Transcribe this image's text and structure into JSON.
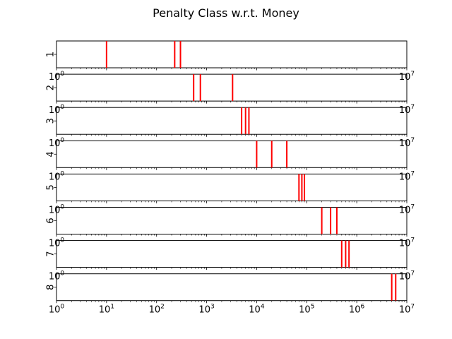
{
  "figure": {
    "title": "Penalty Class w.r.t. Money"
  },
  "chart_data": {
    "type": "eventplot",
    "title": "Penalty Class w.r.t. Money",
    "xscale": "log",
    "xlim": [
      1,
      10000000
    ],
    "shared_x_ticks": [
      "10^0",
      "10^1",
      "10^2",
      "10^3",
      "10^4",
      "10^5",
      "10^6",
      "10^7"
    ],
    "line_color": "#ff0000",
    "grid": false,
    "legend": "none",
    "rows": [
      {
        "label": "1",
        "values": [
          10,
          230,
          300
        ]
      },
      {
        "label": "2",
        "values": [
          550,
          750,
          3300
        ]
      },
      {
        "label": "3",
        "values": [
          5000,
          6000,
          7000
        ]
      },
      {
        "label": "4",
        "values": [
          10000,
          20000,
          40000
        ]
      },
      {
        "label": "5",
        "values": [
          70000,
          80000,
          90000
        ]
      },
      {
        "label": "6",
        "values": [
          200000,
          300000,
          400000
        ]
      },
      {
        "label": "7",
        "values": [
          500000,
          600000,
          700000
        ]
      },
      {
        "label": "8",
        "values": [
          5000000,
          6000000
        ]
      }
    ]
  }
}
